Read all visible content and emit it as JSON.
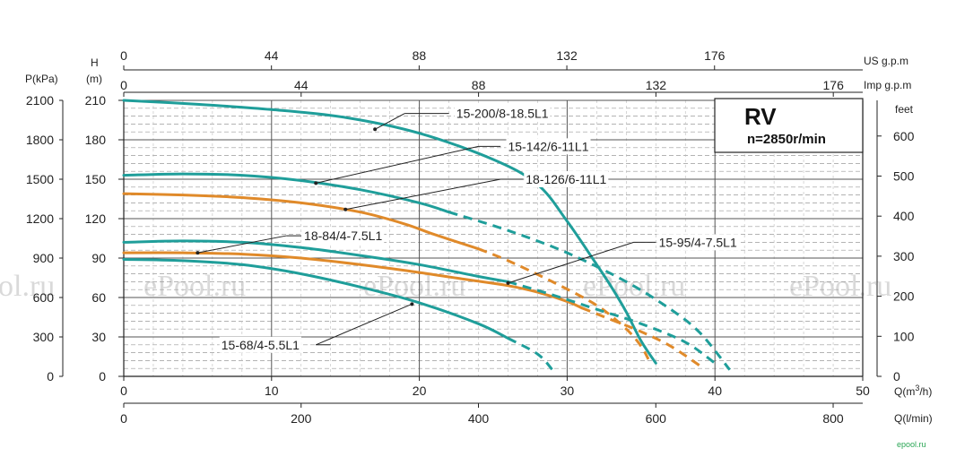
{
  "watermarks": [
    "ol.ru",
    "ePool.ru",
    "ePool.ru",
    "ePool.ru",
    "ePool.ru"
  ],
  "logo_text": "epool.ru",
  "chart_data": {
    "type": "line",
    "title": "RV",
    "subtitle": "n=2850r/min",
    "xlim": [
      0,
      50
    ],
    "ylim": [
      0,
      210
    ],
    "grid": true,
    "axes": {
      "x_bottom_primary": {
        "label": "Q(m³/h)",
        "label_base": "Q(m",
        "label_sup": "3",
        "label_tail": "/h)",
        "ticks": [
          0,
          10,
          20,
          30,
          40,
          50
        ]
      },
      "x_bottom_secondary": {
        "label": "Q(l/min)",
        "ticks": [
          0,
          200,
          400,
          600,
          800
        ],
        "per_unit_of_x": 16.667
      },
      "x_top_us": {
        "label": "US g.p.m",
        "ticks": [
          0,
          44,
          88,
          132,
          176
        ],
        "per_unit_of_x": 4.403
      },
      "x_top_imp": {
        "label": "Imp g.p.m",
        "ticks": [
          0,
          44,
          88,
          132,
          176
        ],
        "per_unit_of_x": 3.666
      },
      "y_head_m": {
        "label_top": "H",
        "label_unit": "(m)",
        "ticks": [
          0,
          30,
          60,
          90,
          120,
          150,
          180,
          210
        ]
      },
      "y_pressure": {
        "label": "P(kPa)",
        "ticks": [
          0,
          300,
          600,
          900,
          1200,
          1500,
          1800,
          2100
        ],
        "per_unit_of_y": 10
      },
      "y_feet": {
        "label": "feet",
        "ticks": [
          0,
          100,
          200,
          300,
          400,
          500,
          600
        ],
        "per_unit_of_y": 3.281
      }
    },
    "colors": {
      "teal": "#1f9e9a",
      "orange": "#e08a2a"
    },
    "series": [
      {
        "name": "15-200/8-18.5L1",
        "color": "teal",
        "solid": [
          [
            0,
            210
          ],
          [
            5,
            207
          ],
          [
            10,
            203
          ],
          [
            15,
            197
          ],
          [
            20,
            185
          ],
          [
            25,
            165
          ],
          [
            28,
            146
          ],
          [
            30,
            118
          ],
          [
            32,
            85
          ],
          [
            33,
            68
          ],
          [
            34,
            49
          ],
          [
            35,
            27
          ],
          [
            36,
            10
          ]
        ],
        "dashed": []
      },
      {
        "name": "15-142/6-11L1",
        "color": "teal",
        "solid": [
          [
            0,
            153
          ],
          [
            4,
            154
          ],
          [
            8,
            153
          ],
          [
            12,
            149
          ],
          [
            16,
            142
          ],
          [
            20,
            132
          ],
          [
            22,
            125
          ]
        ],
        "dashed": [
          [
            22,
            125
          ],
          [
            26,
            111
          ],
          [
            30,
            94
          ],
          [
            34,
            72
          ],
          [
            37,
            51
          ],
          [
            39,
            33
          ],
          [
            41,
            5
          ]
        ]
      },
      {
        "name": "18-126/6-11L1",
        "color": "orange",
        "solid": [
          [
            0,
            139
          ],
          [
            4,
            138
          ],
          [
            8,
            136
          ],
          [
            12,
            132
          ],
          [
            16,
            125
          ],
          [
            19,
            116
          ],
          [
            21,
            108
          ],
          [
            24,
            97
          ]
        ],
        "dashed": [
          [
            24,
            97
          ],
          [
            26,
            88
          ],
          [
            29,
            72
          ],
          [
            32,
            54
          ],
          [
            34,
            36
          ],
          [
            35,
            23
          ],
          [
            35.5,
            13
          ]
        ]
      },
      {
        "name": "18-84/4-7.5L1",
        "color": "orange",
        "solid": [
          [
            0,
            94
          ],
          [
            4,
            94
          ],
          [
            8,
            93
          ],
          [
            12,
            90
          ],
          [
            16,
            85
          ],
          [
            20,
            79
          ],
          [
            23,
            74
          ],
          [
            26,
            69
          ],
          [
            28,
            64
          ],
          [
            30,
            57
          ],
          [
            31,
            52
          ]
        ],
        "dashed": [
          [
            31,
            52
          ],
          [
            33,
            43
          ],
          [
            35,
            34
          ],
          [
            37,
            23
          ],
          [
            39,
            8
          ]
        ]
      },
      {
        "name": "15-95/4-7.5L1",
        "color": "teal",
        "solid": [
          [
            0,
            102
          ],
          [
            4,
            103
          ],
          [
            8,
            102
          ],
          [
            12,
            98
          ],
          [
            16,
            92
          ],
          [
            20,
            85
          ],
          [
            24,
            76
          ],
          [
            26,
            72
          ]
        ],
        "dashed": [
          [
            26,
            72
          ],
          [
            29,
            62
          ],
          [
            32,
            51
          ],
          [
            35,
            40
          ],
          [
            38,
            26
          ],
          [
            40,
            10
          ]
        ]
      },
      {
        "name": "15-68/4-5.5L1",
        "color": "teal",
        "solid": [
          [
            0,
            89
          ],
          [
            4,
            88
          ],
          [
            8,
            85
          ],
          [
            12,
            78
          ],
          [
            16,
            68
          ],
          [
            20,
            56
          ],
          [
            24,
            40
          ],
          [
            26,
            29
          ]
        ],
        "dashed": [
          [
            26,
            29
          ],
          [
            28,
            17
          ],
          [
            29,
            5
          ]
        ]
      }
    ],
    "annotations": [
      {
        "series": "15-200/8-18.5L1",
        "text": "15-200/8-18.5L1",
        "anchor": [
          17,
          188
        ],
        "label_pos": [
          22.5,
          200
        ],
        "label_line_x": [
          19,
          22
        ]
      },
      {
        "series": "15-142/6-11L1",
        "text": "15-142/6-11L1",
        "anchor": [
          13,
          147
        ],
        "label_pos": [
          26,
          175
        ],
        "label_line_x": [
          24,
          25.5
        ]
      },
      {
        "series": "18-126/6-11L1",
        "text": "18-126/6-11L1",
        "anchor": [
          15,
          127
        ],
        "label_pos": [
          27.2,
          150
        ],
        "label_line_x": [
          25.5,
          27
        ]
      },
      {
        "series": "18-84/4-7.5L1",
        "text": "18-84/4-7.5L1",
        "anchor": [
          5,
          94
        ],
        "label_pos": [
          12.2,
          107
        ],
        "label_line_x": [
          11,
          12
        ]
      },
      {
        "series": "15-95/4-7.5L1",
        "text": "15-95/4-7.5L1",
        "anchor": [
          26,
          71
        ],
        "label_pos": [
          36.2,
          102
        ],
        "label_line_x": [
          34.5,
          36
        ]
      },
      {
        "series": "15-68/4-5.5L1",
        "text": "15-68/4-5.5L1",
        "anchor": [
          19.5,
          55
        ],
        "label_pos": [
          6.6,
          24
        ],
        "label_line_x": [
          13,
          14
        ]
      }
    ]
  }
}
